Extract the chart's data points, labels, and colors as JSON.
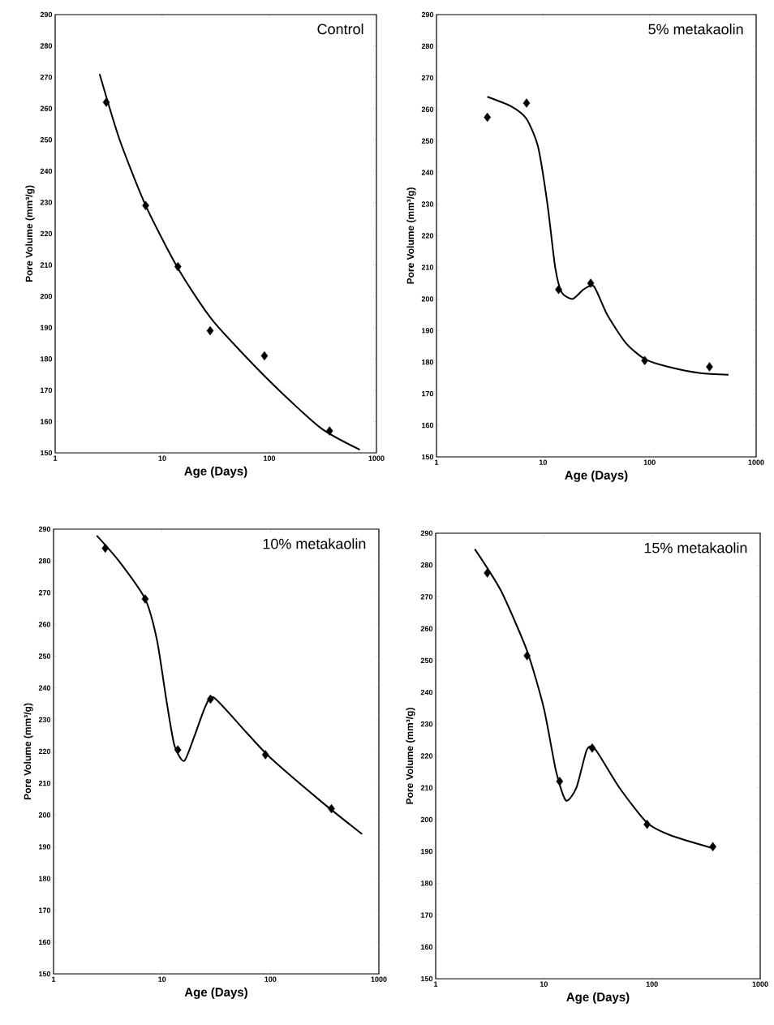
{
  "chart_data": [
    {
      "type": "scatter",
      "title": "Control",
      "xlabel": "Age (Days)",
      "ylabel": "Pore Volume (mm³/g)",
      "log": "x",
      "xlim": [
        1,
        1000
      ],
      "ylim": [
        150,
        290
      ],
      "xticks": [
        1,
        10,
        100,
        1000
      ],
      "yticks": [
        150,
        160,
        170,
        180,
        190,
        200,
        210,
        220,
        230,
        240,
        250,
        260,
        270,
        280,
        290
      ],
      "series": [
        {
          "color": "#000000",
          "marker": "diamond",
          "x": [
            3,
            7,
            14,
            28,
            90,
            365
          ],
          "values": [
            262,
            229,
            209.5,
            189,
            181,
            157
          ]
        },
        {
          "type": "line",
          "color": "#000000",
          "line_style": "solid",
          "x": [
            2.6,
            4,
            7,
            14,
            30,
            100,
            300,
            700
          ],
          "values": [
            271,
            250,
            229,
            209,
            192,
            173,
            158,
            151
          ]
        }
      ]
    },
    {
      "type": "scatter",
      "title": "5% metakaolin",
      "xlabel": "Age (Days)",
      "ylabel": "Pore Volume (mm³/g)",
      "log": "x",
      "xlim": [
        1,
        1000
      ],
      "ylim": [
        150,
        290
      ],
      "xticks": [
        1,
        10,
        100,
        1000
      ],
      "yticks": [
        150,
        160,
        170,
        180,
        190,
        200,
        210,
        220,
        230,
        240,
        250,
        260,
        270,
        280,
        290
      ],
      "series": [
        {
          "color": "#000000",
          "marker": "diamond",
          "x": [
            3,
            7,
            14,
            28,
            90,
            365
          ],
          "values": [
            257.5,
            262,
            203,
            205,
            180.5,
            178.5
          ]
        },
        {
          "type": "line",
          "color": "#000000",
          "line_style": "solid",
          "x": [
            3,
            5,
            7,
            9,
            11,
            13,
            15,
            19,
            24,
            30,
            40,
            60,
            90,
            150,
            300,
            550
          ],
          "values": [
            264,
            261,
            257,
            248,
            230,
            210,
            202,
            200,
            203,
            204,
            195,
            186,
            181,
            178.5,
            176.5,
            176
          ]
        }
      ]
    },
    {
      "type": "scatter",
      "title": "10% metakaolin",
      "xlabel": "Age (Days)",
      "ylabel": "Pore Volume (mm³/g)",
      "log": "x",
      "xlim": [
        1,
        1000
      ],
      "ylim": [
        150,
        290
      ],
      "xticks": [
        1,
        10,
        100,
        1000
      ],
      "yticks": [
        150,
        160,
        170,
        180,
        190,
        200,
        210,
        220,
        230,
        240,
        250,
        260,
        270,
        280,
        290
      ],
      "series": [
        {
          "color": "#000000",
          "marker": "diamond",
          "x": [
            3,
            7,
            14,
            28,
            90,
            365
          ],
          "values": [
            284,
            268,
            220.5,
            236.5,
            219,
            202
          ]
        },
        {
          "type": "line",
          "color": "#000000",
          "line_style": "solid",
          "x": [
            2.5,
            4,
            7,
            9,
            11,
            13,
            16,
            20,
            25,
            30,
            60,
            100,
            300,
            700
          ],
          "values": [
            288,
            280,
            268,
            255,
            236,
            222,
            217,
            225,
            234,
            237,
            226,
            218,
            204,
            194
          ]
        }
      ]
    },
    {
      "type": "scatter",
      "title": "15% metakaolin",
      "xlabel": "Age (Days)",
      "ylabel": "Pore Volume (mm³/g)",
      "log": "x",
      "xlim": [
        1,
        1000
      ],
      "ylim": [
        150,
        290
      ],
      "xticks": [
        1,
        10,
        100,
        1000
      ],
      "yticks": [
        150,
        160,
        170,
        180,
        190,
        200,
        210,
        220,
        230,
        240,
        250,
        260,
        270,
        280,
        290
      ],
      "series": [
        {
          "color": "#000000",
          "marker": "diamond",
          "x": [
            3,
            7,
            14,
            28,
            90,
            365
          ],
          "values": [
            277.5,
            251.5,
            212,
            222.5,
            198.5,
            191.5
          ]
        },
        {
          "type": "line",
          "color": "#000000",
          "line_style": "solid",
          "x": [
            2.3,
            4,
            7,
            10,
            13,
            16,
            20,
            25,
            30,
            50,
            90,
            150,
            365
          ],
          "values": [
            285,
            272,
            253,
            235,
            215,
            206,
            210,
            222,
            222,
            210,
            199,
            195,
            191
          ]
        }
      ]
    }
  ]
}
